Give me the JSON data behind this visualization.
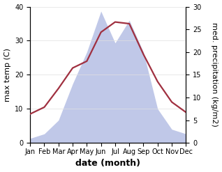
{
  "months": [
    "Jan",
    "Feb",
    "Mar",
    "Apr",
    "May",
    "Jun",
    "Jul",
    "Aug",
    "Sep",
    "Oct",
    "Nov",
    "Dec"
  ],
  "month_positions": [
    0,
    1,
    2,
    3,
    4,
    5,
    6,
    7,
    8,
    9,
    10,
    11
  ],
  "temperature": [
    8.5,
    10.5,
    16.0,
    22.0,
    24.0,
    32.5,
    35.5,
    35.0,
    26.0,
    18.0,
    12.0,
    9.0
  ],
  "precipitation": [
    1.0,
    2.0,
    5.0,
    13.0,
    20.0,
    29.0,
    22.0,
    27.0,
    20.0,
    7.5,
    3.0,
    2.0
  ],
  "temp_color": "#a03040",
  "precip_fill_color": "#c0c8e8",
  "precip_edge_color": "#c0c8e8",
  "temp_ylim": [
    0,
    40
  ],
  "precip_ylim": [
    0,
    30
  ],
  "temp_yticks": [
    0,
    10,
    20,
    30,
    40
  ],
  "precip_yticks": [
    0,
    5,
    10,
    15,
    20,
    25,
    30
  ],
  "ylabel_left": "max temp (C)",
  "ylabel_right": "med. precipitation (kg/m2)",
  "xlabel": "date (month)",
  "background_color": "#ffffff",
  "temp_linewidth": 1.6,
  "xlabel_fontsize": 9,
  "ylabel_fontsize": 8,
  "tick_fontsize": 7,
  "grid_color": "#e0e0e0"
}
